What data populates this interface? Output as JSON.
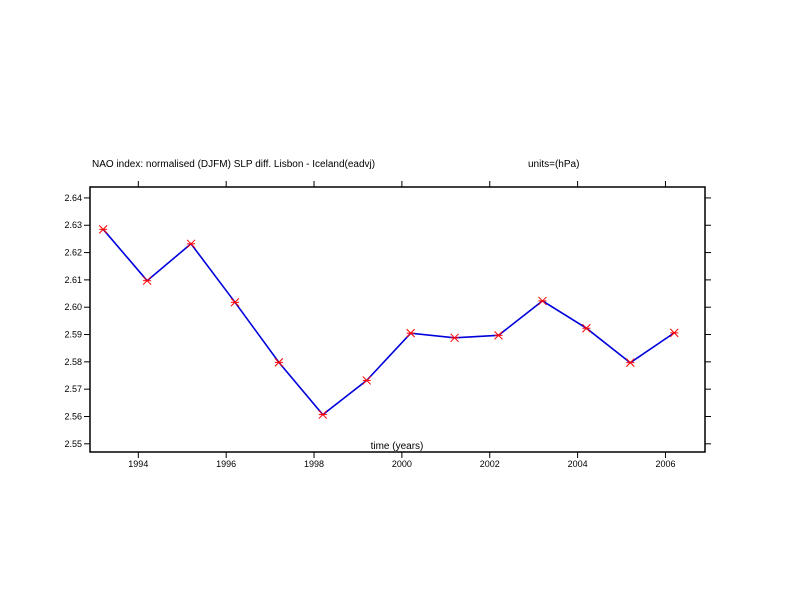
{
  "chart_data": {
    "type": "line",
    "title": "NAO index: normalised (DJFM) SLP diff. Lisbon - Iceland(eadvj)",
    "units": "units=(hPa)",
    "xlabel": "time (years)",
    "ylabel": "",
    "xlim": [
      1992.9,
      2006.9
    ],
    "ylim": [
      2.547,
      2.644
    ],
    "x_ticks": [
      "1994",
      "1996",
      "1998",
      "2000",
      "2002",
      "2004",
      "2006"
    ],
    "x_tick_values": [
      1994,
      1996,
      1998,
      2000,
      2002,
      2004,
      2006
    ],
    "y_ticks": [
      "2.55",
      "2.56",
      "2.57",
      "2.58",
      "2.59",
      "2.60",
      "2.61",
      "2.62",
      "2.63",
      "2.64"
    ],
    "y_tick_values": [
      2.55,
      2.56,
      2.57,
      2.58,
      2.59,
      2.6,
      2.61,
      2.62,
      2.63,
      2.64
    ],
    "x": [
      1993.2,
      1994.2,
      1995.2,
      1996.2,
      1997.2,
      1998.2,
      1999.2,
      2000.2,
      2001.2,
      2002.2,
      2003.2,
      2004.2,
      2005.2,
      2006.2
    ],
    "series": [
      {
        "values": [
          2.6285,
          2.6097,
          2.6232,
          2.6018,
          2.5798,
          2.5607,
          2.5732,
          2.5905,
          2.5888,
          2.5897,
          2.6023,
          2.5923,
          2.5797,
          2.5906
        ]
      }
    ],
    "line_color": "#0000dd",
    "marker_color": "#ff0000",
    "grid": false
  }
}
